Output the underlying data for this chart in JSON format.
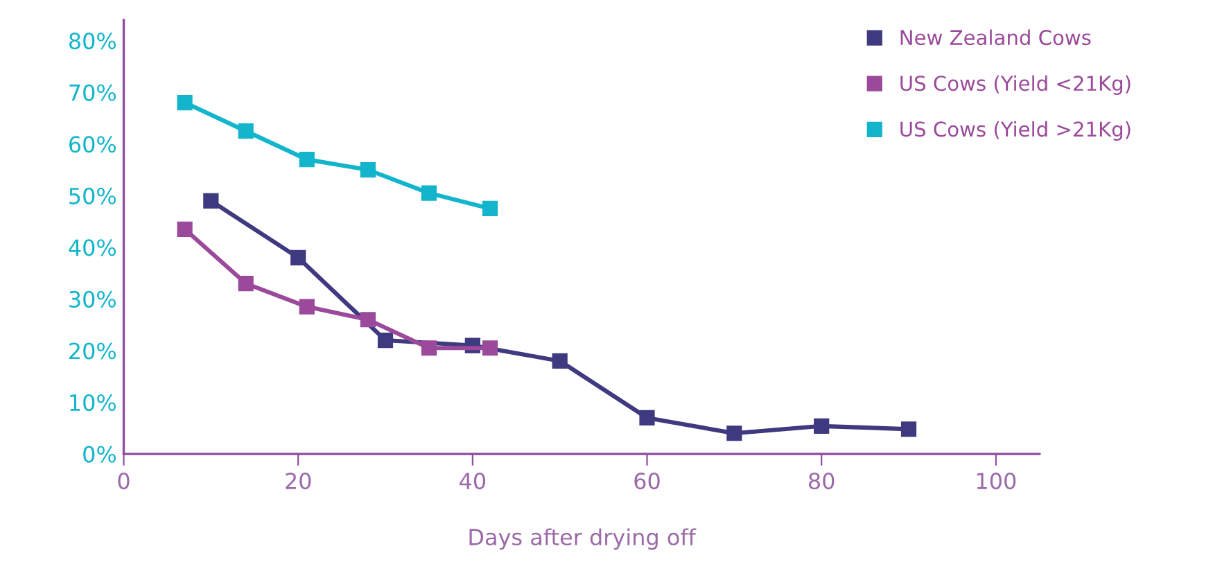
{
  "chart_data": {
    "type": "line",
    "xlabel": "Days after drying off",
    "xlim": [
      0,
      105
    ],
    "xticks": [
      0,
      20,
      40,
      60,
      80,
      100
    ],
    "ylim": [
      0,
      84
    ],
    "yticks": [
      {
        "value": 0,
        "label": "0%"
      },
      {
        "value": 10,
        "label": "10%"
      },
      {
        "value": 20,
        "label": "20%"
      },
      {
        "value": 30,
        "label": "30%"
      },
      {
        "value": 40,
        "label": "40%"
      },
      {
        "value": 50,
        "label": "50%"
      },
      {
        "value": 60,
        "label": "60%"
      },
      {
        "value": 70,
        "label": "70%"
      },
      {
        "value": 80,
        "label": "80%"
      }
    ],
    "grid": false,
    "legend": "top right",
    "marker": "square",
    "line_style": "solid",
    "series": [
      {
        "name": "New Zealand Cows",
        "color": "#3f3a80",
        "x": [
          10,
          20,
          30,
          40,
          50,
          60,
          70,
          80,
          90
        ],
        "values": [
          49,
          38,
          22,
          21,
          18,
          7,
          4,
          5.4,
          4.8
        ]
      },
      {
        "name": "US Cows (Yield <21Kg)",
        "color": "#9b4a9b",
        "x": [
          7,
          14,
          21,
          28,
          35,
          42
        ],
        "values": [
          43.5,
          33,
          28.5,
          26,
          20.5,
          20.5
        ]
      },
      {
        "name": "US Cows (Yield >21Kg)",
        "color": "#12b5cb",
        "x": [
          7,
          14,
          21,
          28,
          35,
          42
        ],
        "values": [
          68,
          62.5,
          57,
          55,
          50.5,
          47.5
        ]
      }
    ]
  }
}
